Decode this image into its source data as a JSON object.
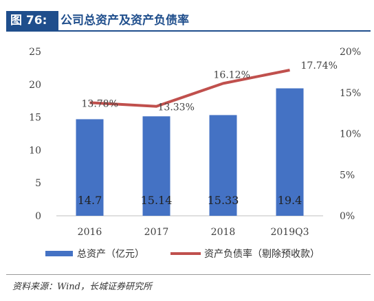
{
  "header": {
    "figure_tag": "图 76:",
    "title": "公司总资产及资产负债率"
  },
  "source": "资料来源：Wind，长城证券研究所",
  "chart_data": {
    "type": "bar+line",
    "categories": [
      "2016",
      "2017",
      "2018",
      "2019Q3"
    ],
    "series": [
      {
        "name": "总资产（亿元）",
        "type": "bar",
        "axis": "left",
        "values": [
          14.7,
          15.14,
          15.33,
          19.4
        ],
        "labels": [
          "14.7",
          "15.14",
          "15.33",
          "19.4"
        ],
        "color": "#4472c4"
      },
      {
        "name": "资产负债率（剔除预收款）",
        "type": "line",
        "axis": "right",
        "values": [
          13.78,
          13.33,
          16.12,
          17.74
        ],
        "labels": [
          "13.78%",
          "13.33%",
          "16.12%",
          "17.74%"
        ],
        "color": "#c0504d"
      }
    ],
    "left_axis": {
      "ylim": [
        0,
        25
      ],
      "ticks": [
        "0",
        "5",
        "10",
        "15",
        "20",
        "25"
      ]
    },
    "right_axis": {
      "ylim": [
        0,
        20
      ],
      "ticks": [
        "0%",
        "5%",
        "10%",
        "15%",
        "20%"
      ]
    },
    "legend_position": "bottom",
    "grid": false
  }
}
